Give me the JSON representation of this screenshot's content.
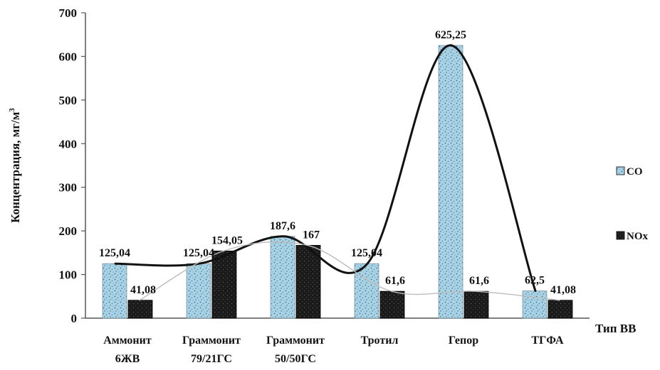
{
  "chart_data": {
    "type": "bar",
    "ylabel": "Концентрация, мг/м³",
    "xlabel": "Тип ВВ",
    "ylim": [
      0,
      700
    ],
    "yticks": [
      0,
      100,
      200,
      300,
      400,
      500,
      600,
      700
    ],
    "grid": false,
    "legend_position": "right",
    "categories": [
      [
        "Аммонит",
        "6ЖВ"
      ],
      [
        "Граммонит",
        "79/21ГС"
      ],
      [
        "Граммонит",
        "50/50ГС"
      ],
      [
        "Тротил"
      ],
      [
        "Гепор"
      ],
      [
        "ТГФА"
      ]
    ],
    "series": [
      {
        "name": "CO",
        "values": [
          125.04,
          125.04,
          187.6,
          125.04,
          625.25,
          62.5
        ],
        "labels": [
          "125,04",
          "125,04",
          "187,6",
          "125,04",
          "625,25",
          "62,5"
        ],
        "color": "#a9d3e6"
      },
      {
        "name": "NOx",
        "values": [
          41.08,
          154.05,
          167,
          61.6,
          61.6,
          41.08
        ],
        "labels": [
          "41,08",
          "154,05",
          "167",
          "61,6",
          "61,6",
          "41,08"
        ],
        "color": "#1a1a1a"
      }
    ],
    "trend_lines": [
      {
        "series": "CO",
        "color": "#111111",
        "style": "thick"
      },
      {
        "series": "NOx",
        "color": "#bdbdbd",
        "style": "thin"
      }
    ]
  }
}
